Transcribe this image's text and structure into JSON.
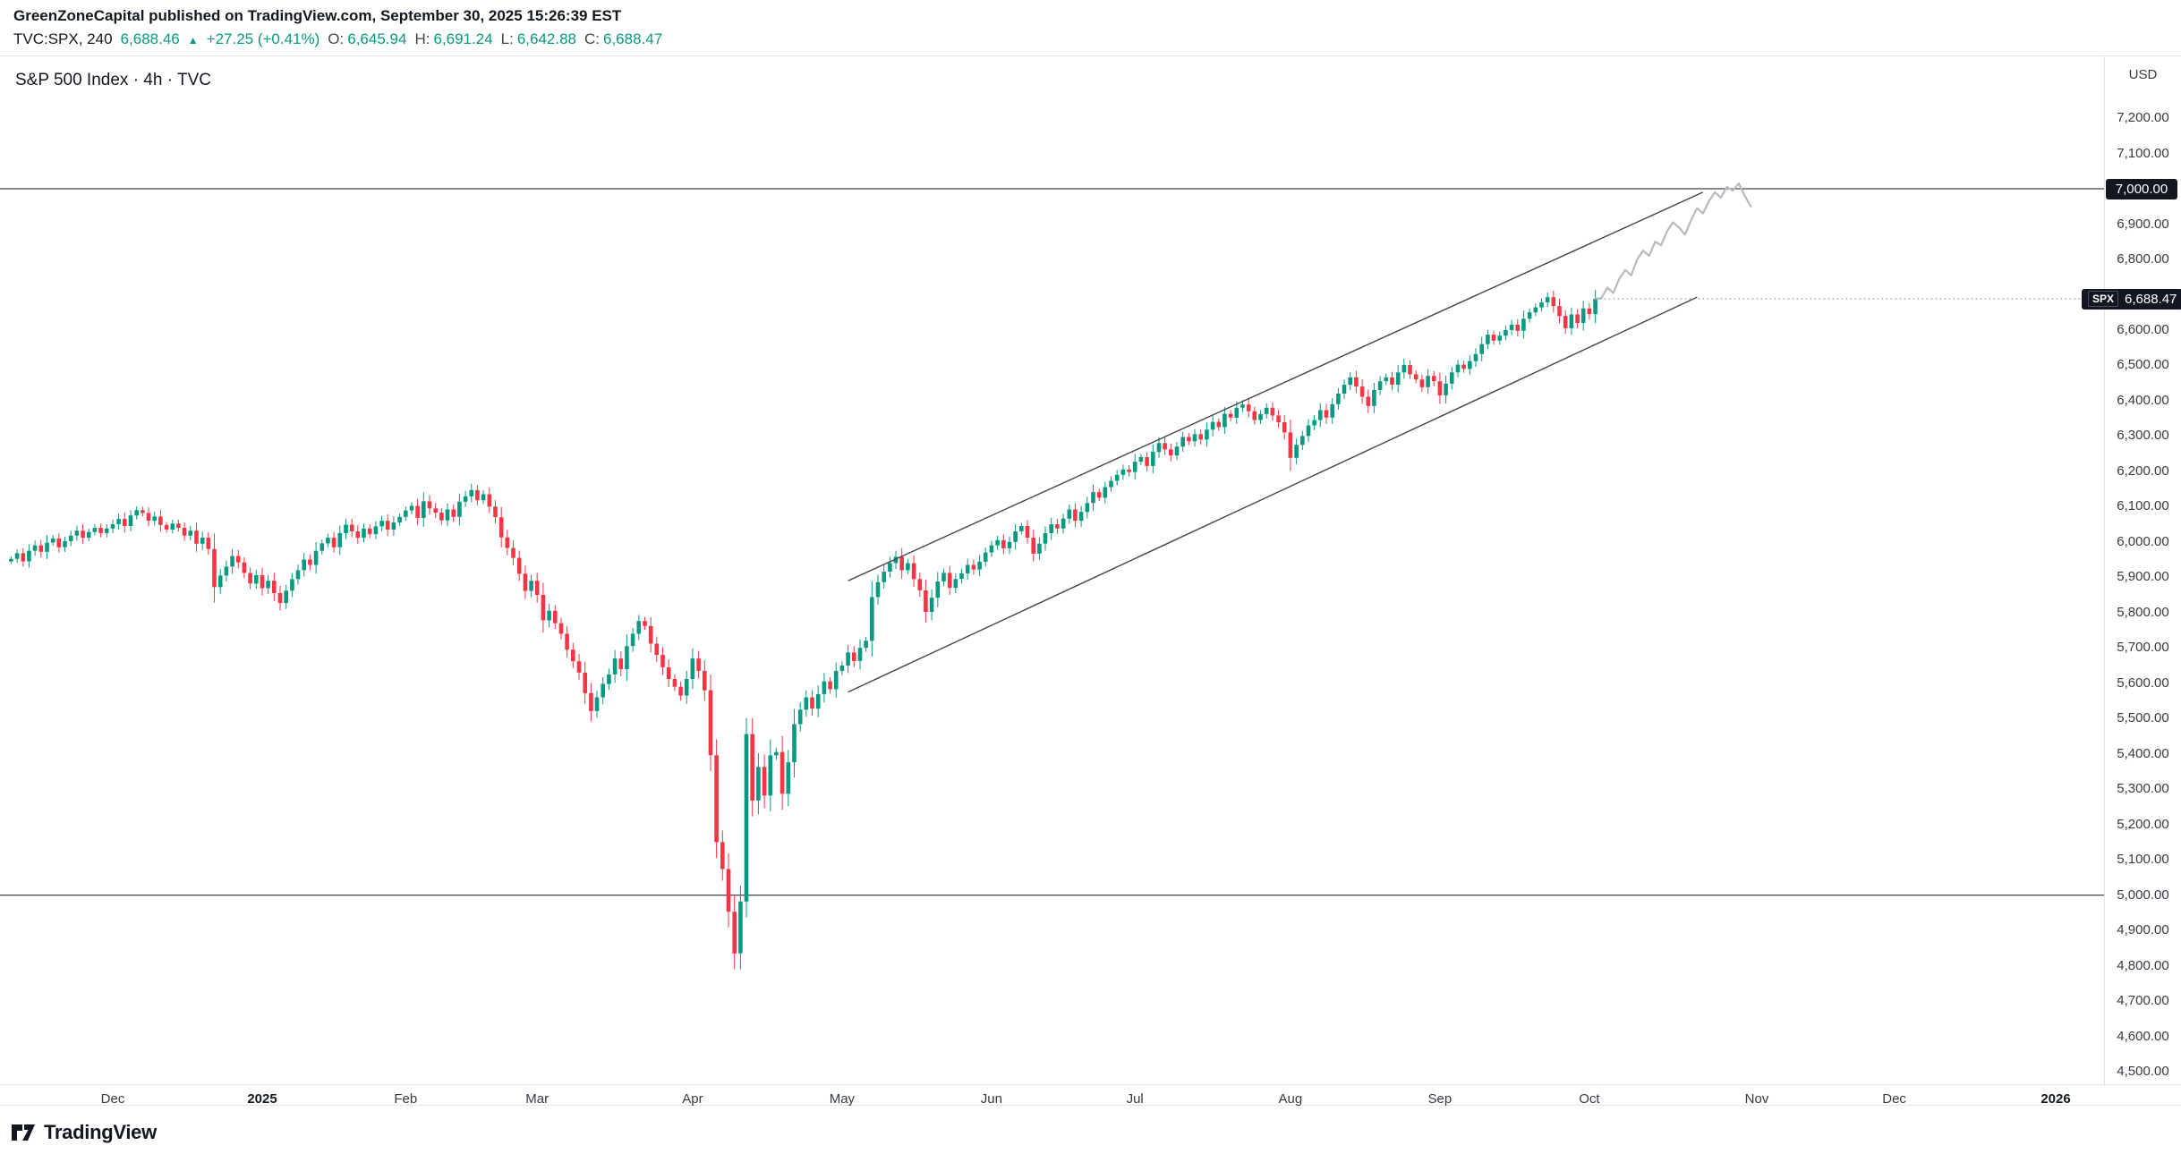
{
  "header": {
    "publisher": "GreenZoneCapital",
    "published_suffix": " published on TradingView.com, September 30, 2025 15:26:39 EST",
    "symbol_line": {
      "symbol": "TVC:SPX, 240",
      "last": "6,688.46",
      "up_arrow": "▲",
      "change": "+27.25 (+0.41%)",
      "o_label": "O:",
      "o": "6,645.94",
      "h_label": "H:",
      "h": "6,691.24",
      "l_label": "L:",
      "l": "6,642.88",
      "c_label": "C:",
      "c": "6,688.47"
    }
  },
  "chart": {
    "title": "S&P 500 Index · 4h · TVC",
    "currency": "USD",
    "colors": {
      "up": "#089981",
      "down": "#f23645",
      "projection": "#b7bac1",
      "trendline": "#40444d",
      "level_line": "#40444d",
      "price_line": "#787b86",
      "badge_bg": "#131722",
      "badge_fg": "#ffffff"
    }
  },
  "footer": {
    "brand": "TradingView"
  },
  "chart_data": {
    "type": "candlestick",
    "title": "S&P 500 Index · 4h · TVC",
    "symbol": "TVC:SPX",
    "interval": "240",
    "currency": "USD",
    "y_axis": {
      "min": 4500,
      "max": 7200,
      "tick_step": 100,
      "hidden_ticks": [
        6700,
        7000
      ]
    },
    "x_labels": [
      {
        "label": "Dec",
        "idx": 17,
        "bold": false
      },
      {
        "label": "2025",
        "idx": 42,
        "bold": true
      },
      {
        "label": "Feb",
        "idx": 66,
        "bold": false
      },
      {
        "label": "Mar",
        "idx": 88,
        "bold": false
      },
      {
        "label": "Apr",
        "idx": 114,
        "bold": false
      },
      {
        "label": "May",
        "idx": 139,
        "bold": false
      },
      {
        "label": "Jun",
        "idx": 164,
        "bold": false
      },
      {
        "label": "Jul",
        "idx": 188,
        "bold": false
      },
      {
        "label": "Aug",
        "idx": 214,
        "bold": false
      },
      {
        "label": "Sep",
        "idx": 239,
        "bold": false
      },
      {
        "label": "Oct",
        "idx": 264,
        "bold": false
      },
      {
        "label": "Nov",
        "idx": 292,
        "bold": false
      },
      {
        "label": "Dec",
        "idx": 315,
        "bold": false
      },
      {
        "label": "2026",
        "idx": 342,
        "bold": true
      }
    ],
    "open_first": 5945,
    "closes": [
      5952,
      5968,
      5945,
      5975,
      5990,
      5972,
      5998,
      6010,
      5985,
      6002,
      6018,
      6032,
      6012,
      6028,
      6040,
      6025,
      6038,
      6050,
      6065,
      6045,
      6075,
      6090,
      6082,
      6060,
      6072,
      6048,
      6035,
      6052,
      6040,
      6018,
      6032,
      5995,
      6012,
      5980,
      5872,
      5905,
      5930,
      5960,
      5942,
      5912,
      5882,
      5906,
      5869,
      5890,
      5855,
      5827,
      5862,
      5895,
      5920,
      5950,
      5935,
      5975,
      5996,
      6012,
      5985,
      6025,
      6049,
      6030,
      6012,
      6038,
      6022,
      6044,
      6060,
      6035,
      6055,
      6071,
      6089,
      6102,
      6068,
      6115,
      6095,
      6083,
      6061,
      6092,
      6071,
      6114,
      6129,
      6147,
      6118,
      6135,
      6100,
      6070,
      6013,
      5983,
      5955,
      5910,
      5861,
      5890,
      5850,
      5778,
      5805,
      5770,
      5740,
      5695,
      5662,
      5630,
      5572,
      5521,
      5560,
      5598,
      5625,
      5670,
      5640,
      5705,
      5740,
      5776,
      5762,
      5712,
      5680,
      5645,
      5612,
      5590,
      5565,
      5612,
      5670,
      5635,
      5580,
      5396,
      5150,
      5074,
      4953,
      4835,
      4982,
      5456,
      5268,
      5363,
      5282,
      5396,
      5405,
      5287,
      5376,
      5484,
      5525,
      5560,
      5528,
      5569,
      5605,
      5583,
      5635,
      5650,
      5687,
      5663,
      5700,
      5720,
      5844,
      5886,
      5916,
      5940,
      5958,
      5920,
      5940,
      5895,
      5863,
      5802,
      5842,
      5888,
      5912,
      5870,
      5895,
      5911,
      5935,
      5922,
      5944,
      5970,
      5990,
      6005,
      5982,
      6000,
      6030,
      6045,
      6012,
      5967,
      5995,
      6025,
      6050,
      6038,
      6066,
      6092,
      6060,
      6085,
      6110,
      6141,
      6125,
      6155,
      6173,
      6190,
      6205,
      6198,
      6227,
      6240,
      6215,
      6255,
      6280,
      6262,
      6245,
      6270,
      6297,
      6285,
      6305,
      6290,
      6318,
      6340,
      6325,
      6363,
      6352,
      6380,
      6389,
      6370,
      6345,
      6362,
      6380,
      6358,
      6339,
      6310,
      6238,
      6275,
      6300,
      6330,
      6345,
      6373,
      6352,
      6390,
      6420,
      6445,
      6466,
      6440,
      6411,
      6385,
      6430,
      6455,
      6466,
      6445,
      6480,
      6501,
      6475,
      6460,
      6438,
      6470,
      6455,
      6415,
      6448,
      6480,
      6502,
      6490,
      6512,
      6532,
      6560,
      6587,
      6570,
      6584,
      6600,
      6615,
      6598,
      6632,
      6650,
      6664,
      6678,
      6693,
      6668,
      6640,
      6605,
      6644,
      6620,
      6661,
      6645,
      6688.47
    ],
    "projection_line": [
      6690,
      6720,
      6705,
      6745,
      6770,
      6755,
      6800,
      6825,
      6810,
      6850,
      6840,
      6880,
      6905,
      6890,
      6870,
      6910,
      6945,
      6930,
      6965,
      6990,
      6975,
      7005,
      6995,
      7015,
      6980,
      6950
    ],
    "horizontal_levels": [
      7000,
      5000
    ],
    "level_badge_value": 7000,
    "last_price": 6688.47,
    "last_price_symbol": "SPX",
    "channel": {
      "lower": {
        "i1": 140,
        "p1": 5575,
        "i2": 282,
        "p2": 6693
      },
      "upper": {
        "i1": 140,
        "p1": 5890,
        "i2": 283,
        "p2": 6990
      }
    }
  }
}
